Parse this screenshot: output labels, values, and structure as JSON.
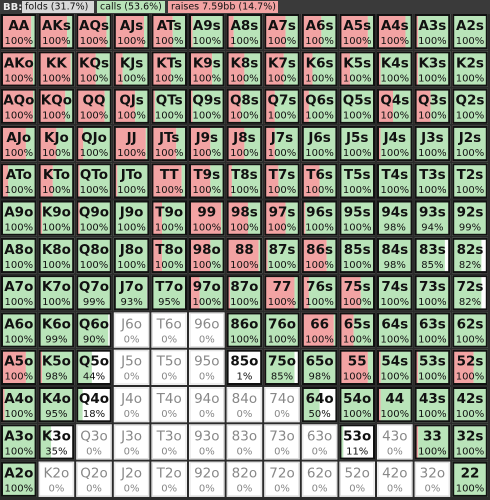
{
  "header": {
    "label": "BB:",
    "folds": "folds (31.7%)",
    "calls": "calls (53.6%)",
    "raises": "raises 7.59bb (14.7%)"
  },
  "grid": {
    "rows": [
      [
        [
          "AA",
          "100%",
          85,
          15
        ],
        [
          "AKs",
          "100%",
          80,
          20
        ],
        [
          "AQs",
          "100%",
          85,
          15
        ],
        [
          "AJs",
          "100%",
          85,
          15
        ],
        [
          "ATs",
          "100%",
          60,
          40
        ],
        [
          "A9s",
          "100%",
          10,
          90
        ],
        [
          "A8s",
          "100%",
          20,
          80
        ],
        [
          "A7s",
          "100%",
          60,
          40
        ],
        [
          "A6s",
          "100%",
          55,
          45
        ],
        [
          "A5s",
          "100%",
          80,
          20
        ],
        [
          "A4s",
          "100%",
          80,
          20
        ],
        [
          "A3s",
          "100%",
          10,
          90
        ],
        [
          "A2s",
          "100%",
          5,
          95
        ]
      ],
      [
        [
          "AKo",
          "100%",
          90,
          10
        ],
        [
          "KK",
          "100%",
          90,
          10
        ],
        [
          "KQs",
          "100%",
          55,
          45
        ],
        [
          "KJs",
          "100%",
          25,
          75
        ],
        [
          "KTs",
          "100%",
          55,
          45
        ],
        [
          "K9s",
          "100%",
          65,
          35
        ],
        [
          "K8s",
          "100%",
          50,
          50
        ],
        [
          "K7s",
          "100%",
          55,
          45
        ],
        [
          "K6s",
          "100%",
          30,
          70
        ],
        [
          "K5s",
          "100%",
          30,
          70
        ],
        [
          "K4s",
          "100%",
          10,
          90
        ],
        [
          "K3s",
          "100%",
          10,
          90
        ],
        [
          "K2s",
          "100%",
          5,
          95
        ]
      ],
      [
        [
          "AQo",
          "100%",
          90,
          10
        ],
        [
          "KQo",
          "100%",
          75,
          25
        ],
        [
          "QQ",
          "100%",
          80,
          20
        ],
        [
          "QJs",
          "100%",
          60,
          40
        ],
        [
          "QTs",
          "100%",
          10,
          90
        ],
        [
          "Q9s",
          "100%",
          10,
          90
        ],
        [
          "Q8s",
          "100%",
          40,
          60
        ],
        [
          "Q7s",
          "100%",
          30,
          70
        ],
        [
          "Q6s",
          "100%",
          20,
          80
        ],
        [
          "Q5s",
          "100%",
          5,
          95
        ],
        [
          "Q4s",
          "100%",
          45,
          55
        ],
        [
          "Q3s",
          "100%",
          45,
          55
        ],
        [
          "Q2s",
          "100%",
          5,
          95
        ]
      ],
      [
        [
          "AJo",
          "100%",
          70,
          30
        ],
        [
          "KJo",
          "100%",
          50,
          50
        ],
        [
          "QJo",
          "100%",
          20,
          80
        ],
        [
          "JJ",
          "100%",
          90,
          10
        ],
        [
          "JTs",
          "100%",
          70,
          30
        ],
        [
          "J9s",
          "100%",
          60,
          40
        ],
        [
          "J8s",
          "100%",
          50,
          50
        ],
        [
          "J7s",
          "100%",
          30,
          70
        ],
        [
          "J6s",
          "100%",
          5,
          95
        ],
        [
          "J5s",
          "100%",
          0,
          100
        ],
        [
          "J4s",
          "100%",
          10,
          90
        ],
        [
          "J3s",
          "100%",
          5,
          95
        ],
        [
          "J2s",
          "100%",
          5,
          95
        ]
      ],
      [
        [
          "ATo",
          "100%",
          20,
          80
        ],
        [
          "KTo",
          "100%",
          40,
          60
        ],
        [
          "QTo",
          "100%",
          10,
          90
        ],
        [
          "JTo",
          "100%",
          10,
          90
        ],
        [
          "TT",
          "100%",
          85,
          15
        ],
        [
          "T9s",
          "100%",
          60,
          40
        ],
        [
          "T8s",
          "100%",
          15,
          85
        ],
        [
          "T7s",
          "100%",
          40,
          60
        ],
        [
          "T6s",
          "100%",
          50,
          50
        ],
        [
          "T5s",
          "100%",
          0,
          100
        ],
        [
          "T4s",
          "100%",
          0,
          100
        ],
        [
          "T3s",
          "100%",
          0,
          100
        ],
        [
          "T2s",
          "100%",
          0,
          100
        ]
      ],
      [
        [
          "A9o",
          "100%",
          0,
          100
        ],
        [
          "K9o",
          "100%",
          10,
          90
        ],
        [
          "Q9o",
          "100%",
          10,
          90
        ],
        [
          "J9o",
          "100%",
          0,
          100
        ],
        [
          "T9o",
          "100%",
          30,
          70
        ],
        [
          "99",
          "100%",
          90,
          10
        ],
        [
          "98s",
          "100%",
          60,
          40
        ],
        [
          "97s",
          "100%",
          60,
          40
        ],
        [
          "96s",
          "100%",
          10,
          90
        ],
        [
          "95s",
          "100%",
          5,
          95
        ],
        [
          "94s",
          "98%",
          5,
          93
        ],
        [
          "93s",
          "94%",
          0,
          94
        ],
        [
          "92s",
          "99%",
          0,
          99
        ]
      ],
      [
        [
          "A8o",
          "100%",
          0,
          100
        ],
        [
          "K8o",
          "100%",
          0,
          100
        ],
        [
          "Q8o",
          "100%",
          0,
          100
        ],
        [
          "J8o",
          "100%",
          0,
          100
        ],
        [
          "T8o",
          "100%",
          30,
          70
        ],
        [
          "98o",
          "100%",
          60,
          40
        ],
        [
          "88",
          "100%",
          90,
          10
        ],
        [
          "87s",
          "100%",
          10,
          90
        ],
        [
          "86s",
          "100%",
          70,
          30
        ],
        [
          "85s",
          "100%",
          5,
          95
        ],
        [
          "84s",
          "98%",
          0,
          98
        ],
        [
          "83s",
          "85%",
          0,
          85
        ],
        [
          "82s",
          "82%",
          0,
          82
        ]
      ],
      [
        [
          "A7o",
          "100%",
          5,
          95
        ],
        [
          "K7o",
          "100%",
          0,
          100
        ],
        [
          "Q7o",
          "99%",
          0,
          99
        ],
        [
          "J7o",
          "93%",
          0,
          93
        ],
        [
          "T7o",
          "95%",
          0,
          95
        ],
        [
          "97o",
          "100%",
          30,
          70
        ],
        [
          "87o",
          "100%",
          10,
          90
        ],
        [
          "77",
          "100%",
          85,
          15
        ],
        [
          "76s",
          "100%",
          20,
          80
        ],
        [
          "75s",
          "100%",
          60,
          40
        ],
        [
          "74s",
          "100%",
          0,
          100
        ],
        [
          "73s",
          "100%",
          0,
          100
        ],
        [
          "72s",
          "82%",
          0,
          82
        ]
      ],
      [
        [
          "A6o",
          "100%",
          0,
          100
        ],
        [
          "K6o",
          "99%",
          0,
          99
        ],
        [
          "Q6o",
          "90%",
          0,
          90
        ],
        [
          "J6o",
          "0%",
          0,
          0
        ],
        [
          "T6o",
          "0%",
          0,
          0
        ],
        [
          "96o",
          "0%",
          0,
          0
        ],
        [
          "86o",
          "100%",
          5,
          95
        ],
        [
          "76o",
          "100%",
          0,
          100
        ],
        [
          "66",
          "100%",
          90,
          10
        ],
        [
          "65s",
          "100%",
          40,
          60
        ],
        [
          "64s",
          "100%",
          0,
          100
        ],
        [
          "63s",
          "100%",
          0,
          100
        ],
        [
          "62s",
          "100%",
          0,
          100
        ]
      ],
      [
        [
          "A5o",
          "100%",
          70,
          30
        ],
        [
          "K5o",
          "98%",
          10,
          88
        ],
        [
          "Q5o",
          "44%",
          0,
          44
        ],
        [
          "J5o",
          "0%",
          0,
          0
        ],
        [
          "T5o",
          "0%",
          0,
          0
        ],
        [
          "95o",
          "0%",
          0,
          0
        ],
        [
          "85o",
          "1%",
          0,
          1
        ],
        [
          "75o",
          "85%",
          5,
          80
        ],
        [
          "65o",
          "98%",
          0,
          98
        ],
        [
          "55",
          "100%",
          80,
          20
        ],
        [
          "54s",
          "100%",
          10,
          90
        ],
        [
          "53s",
          "100%",
          10,
          90
        ],
        [
          "52s",
          "100%",
          60,
          40
        ]
      ],
      [
        [
          "A4o",
          "100%",
          10,
          90
        ],
        [
          "K4o",
          "95%",
          5,
          90
        ],
        [
          "Q4o",
          "18%",
          0,
          18
        ],
        [
          "J4o",
          "0%",
          0,
          0
        ],
        [
          "T4o",
          "0%",
          0,
          0
        ],
        [
          "94o",
          "0%",
          0,
          0
        ],
        [
          "84o",
          "0%",
          0,
          0
        ],
        [
          "74o",
          "0%",
          0,
          0
        ],
        [
          "64o",
          "50%",
          0,
          50
        ],
        [
          "54o",
          "100%",
          0,
          100
        ],
        [
          "44",
          "100%",
          10,
          90
        ],
        [
          "43s",
          "100%",
          0,
          100
        ],
        [
          "42s",
          "100%",
          0,
          100
        ]
      ],
      [
        [
          "A3o",
          "100%",
          0,
          100
        ],
        [
          "K3o",
          "35%",
          5,
          30
        ],
        [
          "Q3o",
          "0%",
          0,
          0
        ],
        [
          "J3o",
          "0%",
          0,
          0
        ],
        [
          "T3o",
          "0%",
          0,
          0
        ],
        [
          "93o",
          "0%",
          0,
          0
        ],
        [
          "83o",
          "0%",
          0,
          0
        ],
        [
          "73o",
          "0%",
          0,
          0
        ],
        [
          "63o",
          "0%",
          0,
          0
        ],
        [
          "53o",
          "11%",
          0,
          11
        ],
        [
          "43o",
          "0%",
          0,
          0
        ],
        [
          "33",
          "100%",
          10,
          90
        ],
        [
          "32s",
          "100%",
          0,
          100
        ]
      ],
      [
        [
          "A2o",
          "100%",
          0,
          100
        ],
        [
          "K2o",
          "0%",
          0,
          0
        ],
        [
          "Q2o",
          "0%",
          0,
          0
        ],
        [
          "J2o",
          "0%",
          0,
          0
        ],
        [
          "T2o",
          "0%",
          0,
          0
        ],
        [
          "92o",
          "0%",
          0,
          0
        ],
        [
          "82o",
          "0%",
          0,
          0
        ],
        [
          "72o",
          "0%",
          0,
          0
        ],
        [
          "62o",
          "0%",
          0,
          0
        ],
        [
          "52o",
          "0%",
          0,
          0
        ],
        [
          "42o",
          "0%",
          0,
          0
        ],
        [
          "32o",
          "0%",
          0,
          0
        ],
        [
          "22",
          "100%",
          0,
          100
        ]
      ]
    ]
  }
}
